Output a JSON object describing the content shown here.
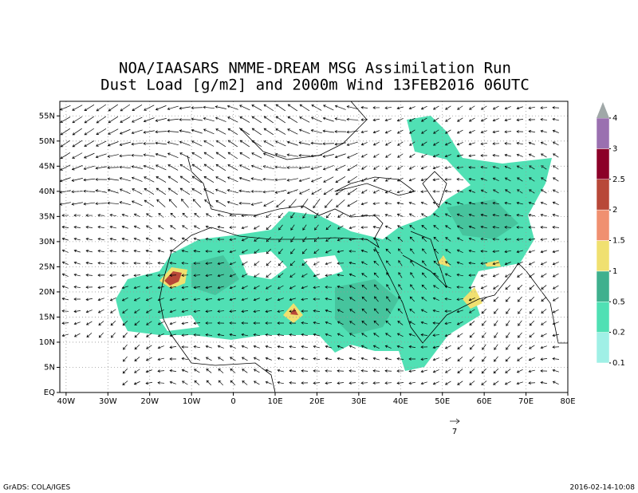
{
  "title": [
    "NOA/IAASARS NMME-DREAM MSG Assimilation Run",
    "Dust Load [g/m2] and 2000m Wind 13FEB2016 06UTC"
  ],
  "map": {
    "xlim": [
      -41.5,
      80
    ],
    "ylim": [
      0,
      57.9
    ],
    "xticks": [
      {
        "value": -40,
        "label": "40W"
      },
      {
        "value": -30,
        "label": "30W"
      },
      {
        "value": -20,
        "label": "20W"
      },
      {
        "value": -10,
        "label": "10W"
      },
      0,
      {
        "value": 10,
        "label": "10E"
      },
      {
        "value": 20,
        "label": "20E"
      },
      {
        "value": 30,
        "label": "30E"
      },
      {
        "value": 40,
        "label": "40E"
      },
      {
        "value": 50,
        "label": "50E"
      },
      {
        "value": 60,
        "label": "60E"
      },
      {
        "value": 70,
        "label": "70E"
      },
      {
        "value": 80,
        "label": "80E"
      }
    ],
    "yticks": [
      {
        "value": 0,
        "label": "EQ"
      },
      {
        "value": 5,
        "label": "5N"
      },
      {
        "value": 10,
        "label": "10N"
      },
      {
        "value": 15,
        "label": "15N"
      },
      {
        "value": 20,
        "label": "20N"
      },
      {
        "value": 25,
        "label": "25N"
      },
      {
        "value": 30,
        "label": "30N"
      },
      {
        "value": 35,
        "label": "35N"
      },
      {
        "value": 40,
        "label": "40N"
      },
      {
        "value": 45,
        "label": "45N"
      },
      {
        "value": 50,
        "label": "50N"
      },
      {
        "value": 55,
        "label": "55N"
      }
    ],
    "grid": true
  },
  "colorbar": {
    "levels": [
      0.1,
      0.2,
      0.5,
      1,
      1.5,
      2,
      2.5,
      3,
      4
    ],
    "colors": [
      "#a0f0e6",
      "#50e0b4",
      "#3fb08e",
      "#f0e070",
      "#f09070",
      "#b84838",
      "#8c0028",
      "#9a70b0",
      "#a0a8a8"
    ]
  },
  "reference_vector": 7,
  "footer": {
    "left": "GrADS: COLA/IGES",
    "right": "2016-02-14-10:08"
  }
}
